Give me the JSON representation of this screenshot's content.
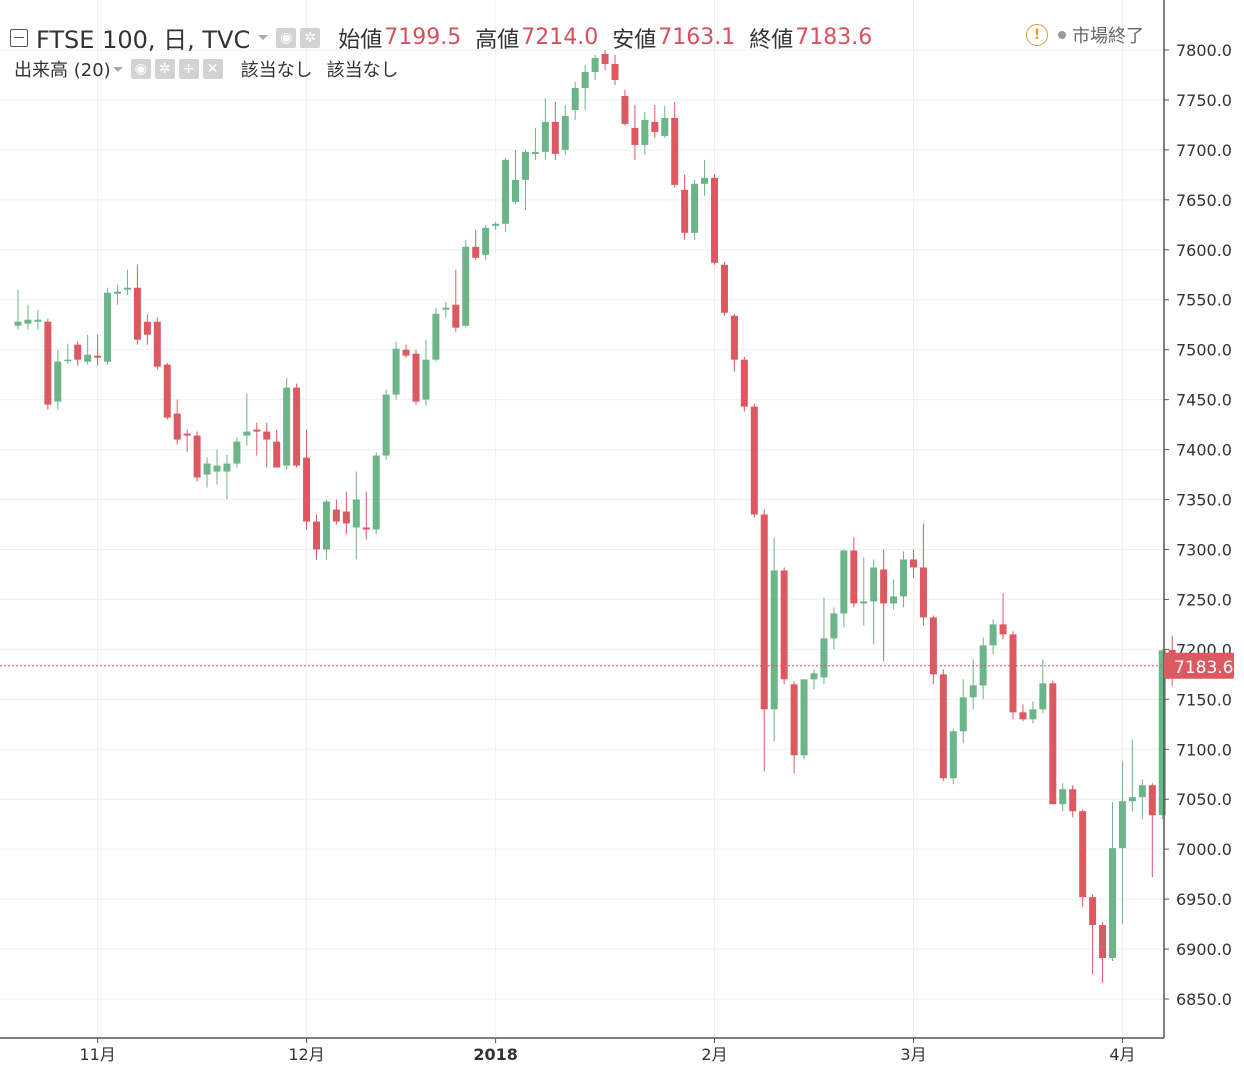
{
  "header": {
    "symbol": "FTSE 100, 日, TVC",
    "ohlc": [
      {
        "label": "始値",
        "value": "7199.5"
      },
      {
        "label": "高値",
        "value": "7214.0"
      },
      {
        "label": "安値",
        "value": "7163.1"
      },
      {
        "label": "終値",
        "value": "7183.6"
      }
    ],
    "volume_label": "出来高 (20)",
    "volume_values": [
      "該当なし",
      "該当なし"
    ],
    "market_status": "市場終了"
  },
  "colors": {
    "up": "#6cb48a",
    "down": "#dc5962",
    "grid": "#eef0f3",
    "axis_text": "#333333",
    "price_tag": "#dc5962"
  },
  "chart_data": {
    "type": "candlestick",
    "title": "",
    "xlabel": "",
    "ylabel": "",
    "ylim": [
      6820,
      7830
    ],
    "y_ticks": [
      "6850.0",
      "6900.0",
      "6950.0",
      "7000.0",
      "7050.0",
      "7100.0",
      "7150.0",
      "7200.0",
      "7250.0",
      "7300.0",
      "7350.0",
      "7400.0",
      "7450.0",
      "7500.0",
      "7550.0",
      "7600.0",
      "7650.0",
      "7700.0",
      "7750.0",
      "7800.0"
    ],
    "x_ticks": [
      {
        "label": "11月",
        "index": 8
      },
      {
        "label": "12月",
        "index": 29
      },
      {
        "label": "2018",
        "index": 48
      },
      {
        "label": "2月",
        "index": 70
      },
      {
        "label": "3月",
        "index": 90
      },
      {
        "label": "4月",
        "index": 111
      }
    ],
    "last_price": "7183.6",
    "grid": true,
    "candles": [
      [
        7524,
        7560,
        7520,
        7528
      ],
      [
        7526,
        7545,
        7520,
        7530
      ],
      [
        7528,
        7540,
        7520,
        7530
      ],
      [
        7528,
        7531,
        7440,
        7445
      ],
      [
        7448,
        7500,
        7440,
        7488
      ],
      [
        7490,
        7506,
        7486,
        7490
      ],
      [
        7505,
        7508,
        7484,
        7490
      ],
      [
        7488,
        7515,
        7485,
        7495
      ],
      [
        7494,
        7515,
        7484,
        7492
      ],
      [
        7488,
        7562,
        7485,
        7557
      ],
      [
        7556,
        7565,
        7545,
        7558
      ],
      [
        7560,
        7580,
        7555,
        7562
      ],
      [
        7562,
        7585,
        7505,
        7510
      ],
      [
        7528,
        7535,
        7505,
        7515
      ],
      [
        7528,
        7532,
        7480,
        7483
      ],
      [
        7485,
        7487,
        7430,
        7432
      ],
      [
        7436,
        7450,
        7405,
        7410
      ],
      [
        7416,
        7420,
        7398,
        7414
      ],
      [
        7414,
        7418,
        7368,
        7372
      ],
      [
        7375,
        7392,
        7362,
        7386
      ],
      [
        7378,
        7400,
        7365,
        7384
      ],
      [
        7378,
        7395,
        7350,
        7386
      ],
      [
        7386,
        7412,
        7382,
        7408
      ],
      [
        7414,
        7456,
        7404,
        7418
      ],
      [
        7420,
        7427,
        7394,
        7418
      ],
      [
        7418,
        7427,
        7382,
        7410
      ],
      [
        7408,
        7420,
        7384,
        7382
      ],
      [
        7384,
        7472,
        7380,
        7462
      ],
      [
        7462,
        7466,
        7382,
        7384
      ],
      [
        7392,
        7420,
        7320,
        7328
      ],
      [
        7328,
        7335,
        7290,
        7300
      ],
      [
        7300,
        7350,
        7290,
        7348
      ],
      [
        7340,
        7350,
        7325,
        7328
      ],
      [
        7338,
        7358,
        7315,
        7326
      ],
      [
        7322,
        7378,
        7290,
        7350
      ],
      [
        7322,
        7358,
        7310,
        7320
      ],
      [
        7320,
        7397,
        7315,
        7394
      ],
      [
        7394,
        7460,
        7390,
        7455
      ],
      [
        7455,
        7508,
        7450,
        7501
      ],
      [
        7500,
        7505,
        7492,
        7494
      ],
      [
        7496,
        7500,
        7445,
        7448
      ],
      [
        7450,
        7510,
        7444,
        7490
      ],
      [
        7490,
        7542,
        7488,
        7536
      ],
      [
        7540,
        7548,
        7532,
        7542
      ],
      [
        7545,
        7580,
        7518,
        7522
      ],
      [
        7524,
        7610,
        7522,
        7603
      ],
      [
        7603,
        7620,
        7590,
        7592
      ],
      [
        7595,
        7625,
        7590,
        7622
      ],
      [
        7624,
        7628,
        7620,
        7626
      ],
      [
        7626,
        7692,
        7618,
        7690
      ],
      [
        7648,
        7700,
        7646,
        7670
      ],
      [
        7670,
        7700,
        7640,
        7698
      ],
      [
        7696,
        7722,
        7690,
        7698
      ],
      [
        7698,
        7752,
        7690,
        7728
      ],
      [
        7728,
        7748,
        7690,
        7696
      ],
      [
        7700,
        7745,
        7695,
        7734
      ],
      [
        7740,
        7768,
        7730,
        7762
      ],
      [
        7762,
        7785,
        7740,
        7778
      ],
      [
        7778,
        7795,
        7770,
        7792
      ],
      [
        7796,
        7800,
        7780,
        7786
      ],
      [
        7786,
        7795,
        7765,
        7770
      ],
      [
        7754,
        7760,
        7724,
        7726
      ],
      [
        7722,
        7745,
        7690,
        7705
      ],
      [
        7705,
        7738,
        7695,
        7730
      ],
      [
        7728,
        7745,
        7712,
        7718
      ],
      [
        7714,
        7744,
        7712,
        7732
      ],
      [
        7732,
        7748,
        7662,
        7665
      ],
      [
        7660,
        7675,
        7610,
        7617
      ],
      [
        7617,
        7670,
        7610,
        7666
      ],
      [
        7666,
        7690,
        7654,
        7672
      ],
      [
        7672,
        7676,
        7585,
        7587
      ],
      [
        7585,
        7588,
        7534,
        7537
      ],
      [
        7534,
        7536,
        7478,
        7490
      ],
      [
        7490,
        7493,
        7438,
        7443
      ],
      [
        7443,
        7446,
        7332,
        7335
      ],
      [
        7335,
        7340,
        7078,
        7140
      ],
      [
        7140,
        7312,
        7108,
        7279
      ],
      [
        7279,
        7282,
        7165,
        7170
      ],
      [
        7165,
        7168,
        7076,
        7094
      ],
      [
        7094,
        7170,
        7090,
        7170
      ],
      [
        7170,
        7180,
        7160,
        7176
      ],
      [
        7172,
        7252,
        7165,
        7211
      ],
      [
        7211,
        7242,
        7200,
        7236
      ],
      [
        7236,
        7300,
        7222,
        7299
      ],
      [
        7299,
        7312,
        7242,
        7246
      ],
      [
        7246,
        7292,
        7224,
        7248
      ],
      [
        7248,
        7290,
        7205,
        7282
      ],
      [
        7280,
        7300,
        7188,
        7246
      ],
      [
        7246,
        7270,
        7240,
        7253
      ],
      [
        7253,
        7298,
        7242,
        7290
      ],
      [
        7290,
        7300,
        7272,
        7282
      ],
      [
        7282,
        7326,
        7224,
        7232
      ],
      [
        7232,
        7234,
        7165,
        7175
      ],
      [
        7175,
        7180,
        7068,
        7071
      ],
      [
        7071,
        7120,
        7065,
        7118
      ],
      [
        7118,
        7170,
        7106,
        7152
      ],
      [
        7152,
        7190,
        7140,
        7164
      ],
      [
        7164,
        7212,
        7150,
        7204
      ],
      [
        7204,
        7230,
        7195,
        7225
      ],
      [
        7225,
        7256,
        7210,
        7215
      ],
      [
        7215,
        7218,
        7130,
        7137
      ],
      [
        7137,
        7145,
        7128,
        7130
      ],
      [
        7130,
        7148,
        7126,
        7140
      ],
      [
        7140,
        7190,
        7136,
        7166
      ],
      [
        7166,
        7169,
        7045,
        7045
      ],
      [
        7045,
        7066,
        7038,
        7060
      ],
      [
        7060,
        7064,
        7032,
        7038
      ],
      [
        7038,
        7040,
        6942,
        6952
      ],
      [
        6952,
        6955,
        6875,
        6924
      ],
      [
        6924,
        6927,
        6866,
        6891
      ],
      [
        6891,
        7047,
        6888,
        7001
      ],
      [
        7001,
        7088,
        6925,
        7048
      ],
      [
        7048,
        7110,
        7038,
        7052
      ],
      [
        7052,
        7070,
        7030,
        7064
      ],
      [
        7064,
        7066,
        6972,
        7034
      ],
      [
        7034,
        7200,
        7030,
        7199
      ],
      [
        7199.5,
        7214.0,
        7163.1,
        7183.6
      ]
    ]
  }
}
